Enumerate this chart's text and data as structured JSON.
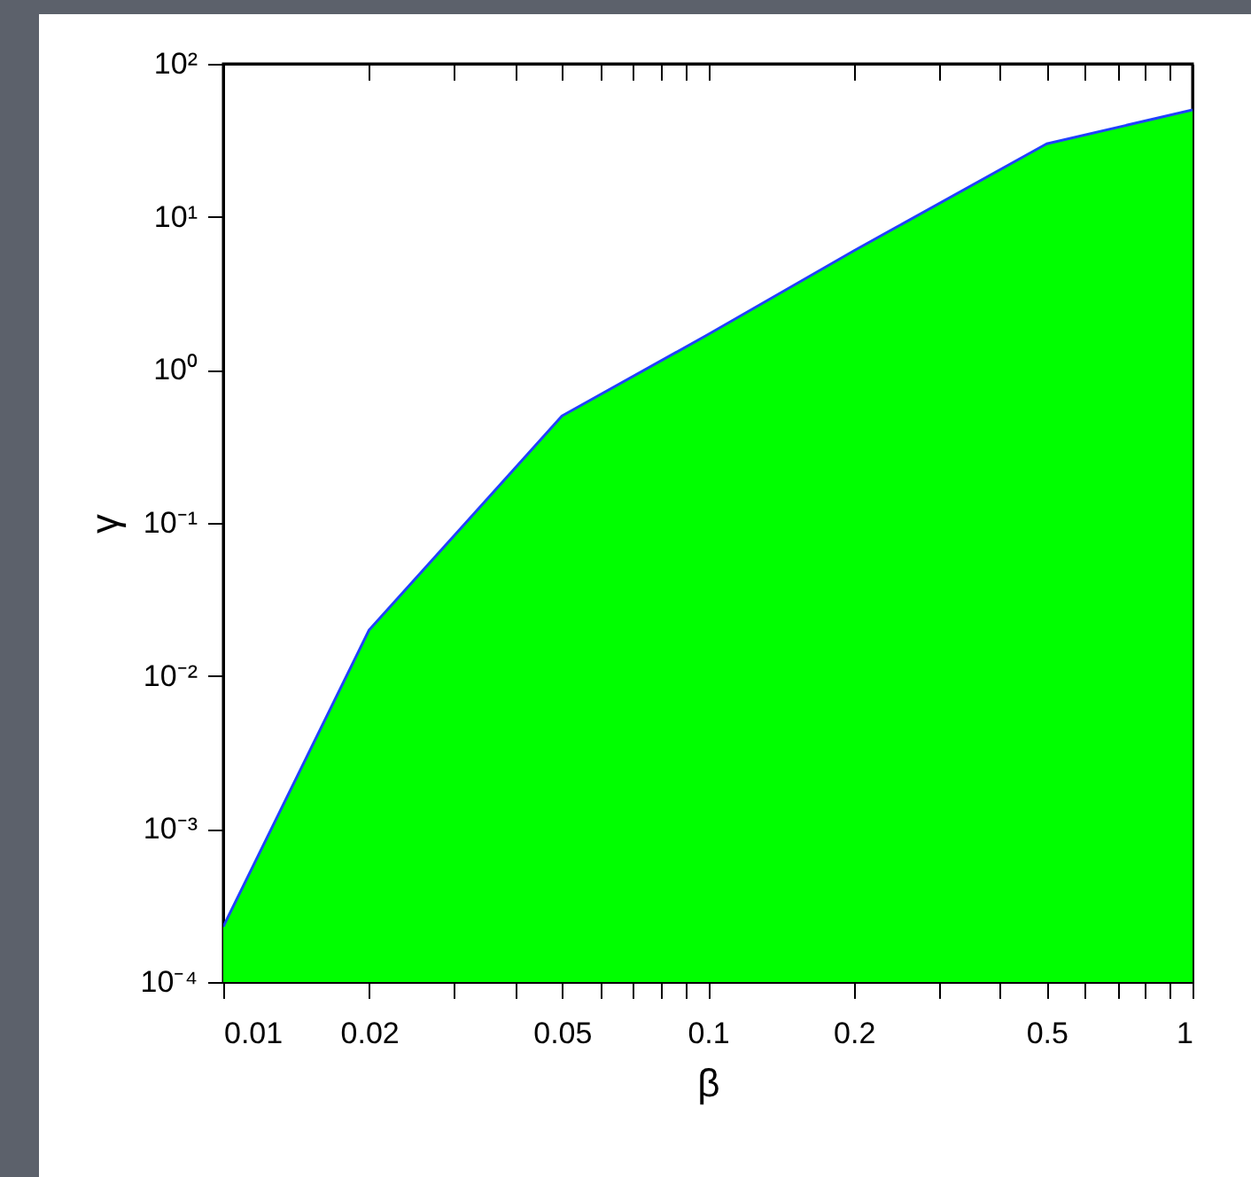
{
  "chart_data": {
    "type": "area",
    "xlabel": "β",
    "ylabel": "γ",
    "x": [
      0.01,
      0.02,
      0.05,
      0.1,
      0.2,
      0.5,
      1
    ],
    "series": [
      {
        "color": "#00ff00",
        "values": [
          0.00023,
          0.02,
          0.5,
          1.7,
          6,
          30,
          50
        ]
      },
      {
        "type": "line",
        "color": "#2040ff",
        "values": [
          0.00023,
          0.02,
          0.5,
          1.7,
          6,
          30,
          50
        ]
      }
    ],
    "log": "xy",
    "xlim": [
      0.01,
      1
    ],
    "ylim": [
      0.0001,
      100
    ],
    "xticks": [
      0.01,
      0.02,
      {
        "value": 0.03,
        "label": null
      },
      {
        "value": 0.04,
        "label": null
      },
      0.05,
      {
        "value": 0.06,
        "label": null
      },
      {
        "value": 0.07,
        "label": null
      },
      {
        "value": 0.08,
        "label": null
      },
      {
        "value": 0.09,
        "label": null
      },
      0.1,
      0.2,
      {
        "value": 0.3,
        "label": null
      },
      {
        "value": 0.4,
        "label": null
      },
      0.5,
      {
        "value": 0.6,
        "label": null
      },
      {
        "value": 0.7,
        "label": null
      },
      {
        "value": 0.8,
        "label": null
      },
      {
        "value": 0.9,
        "label": null
      },
      1
    ],
    "yticks": [
      {
        "value": 0.0001,
        "label": "10⁻⁴"
      },
      {
        "value": 0.001,
        "label": "10⁻³"
      },
      {
        "value": 0.01,
        "label": "10⁻²"
      },
      {
        "value": 0.1,
        "label": "10⁻¹"
      },
      {
        "value": 1,
        "label": "10⁰"
      },
      {
        "value": 10,
        "label": "10¹"
      },
      {
        "value": 100,
        "label": "10²"
      }
    ]
  }
}
